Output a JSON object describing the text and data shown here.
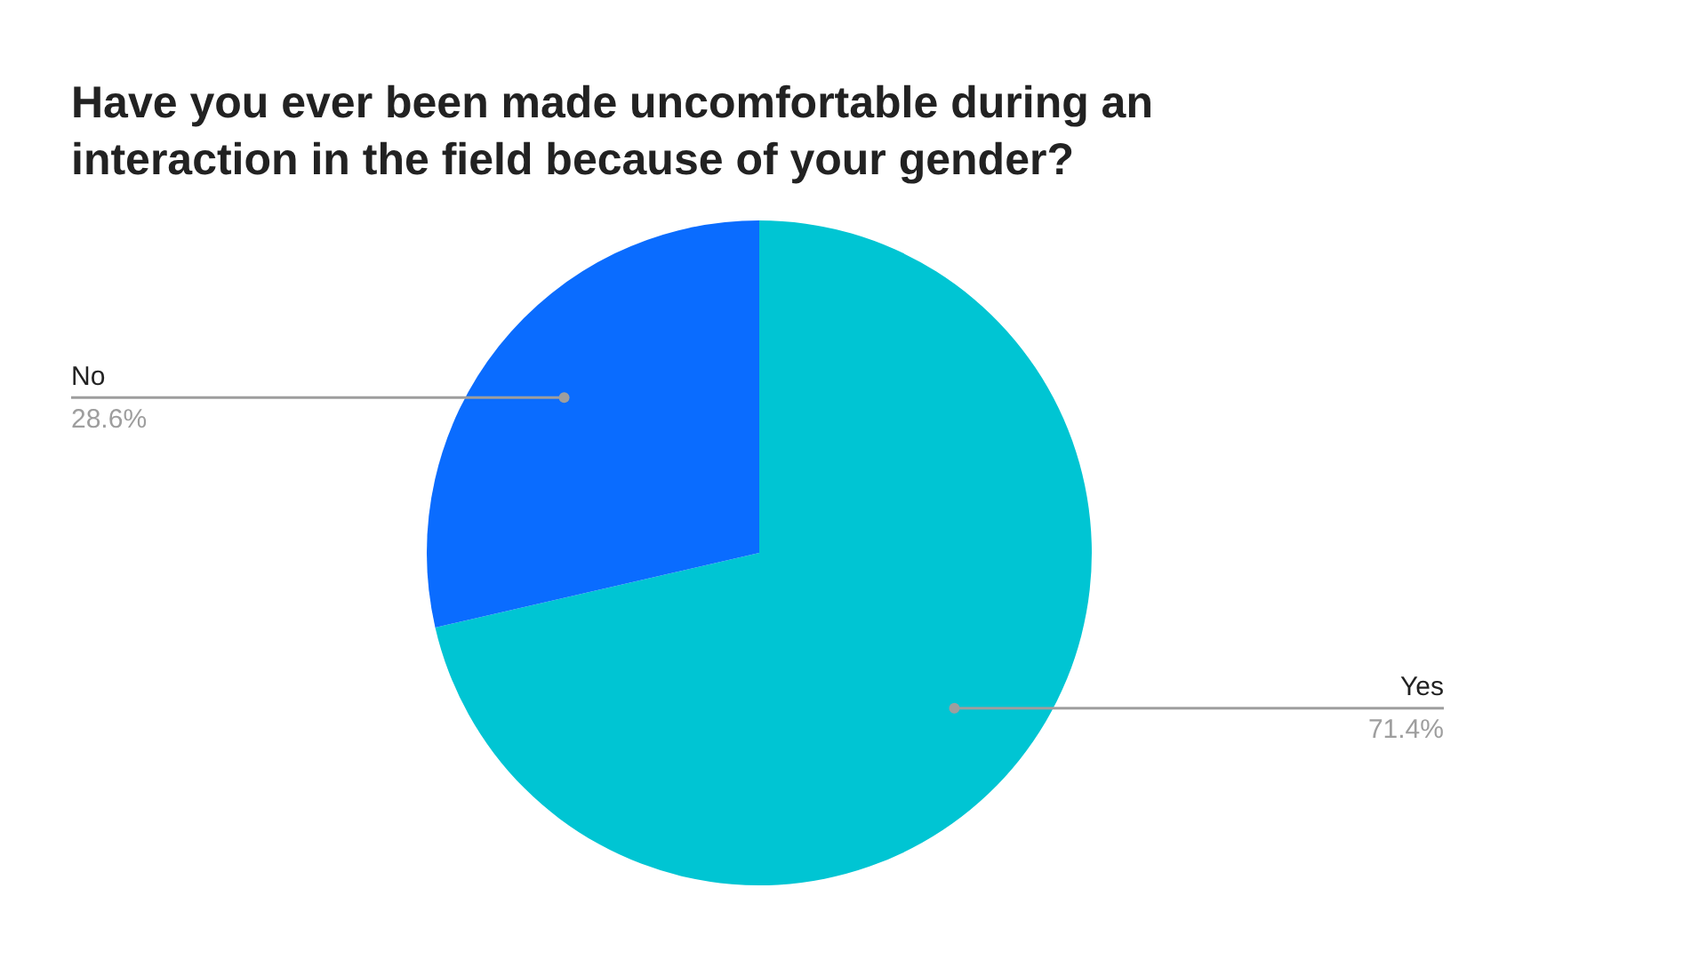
{
  "chart_data": {
    "type": "pie",
    "title": "Have you ever been made uncomfortable during an interaction in the field because of your gender?",
    "categories": [
      "Yes",
      "No"
    ],
    "values": [
      71.4,
      28.6
    ],
    "value_labels": [
      "71.4%",
      "28.6%"
    ],
    "colors": [
      "#00c5d3",
      "#0a6cff"
    ],
    "legend": false
  }
}
